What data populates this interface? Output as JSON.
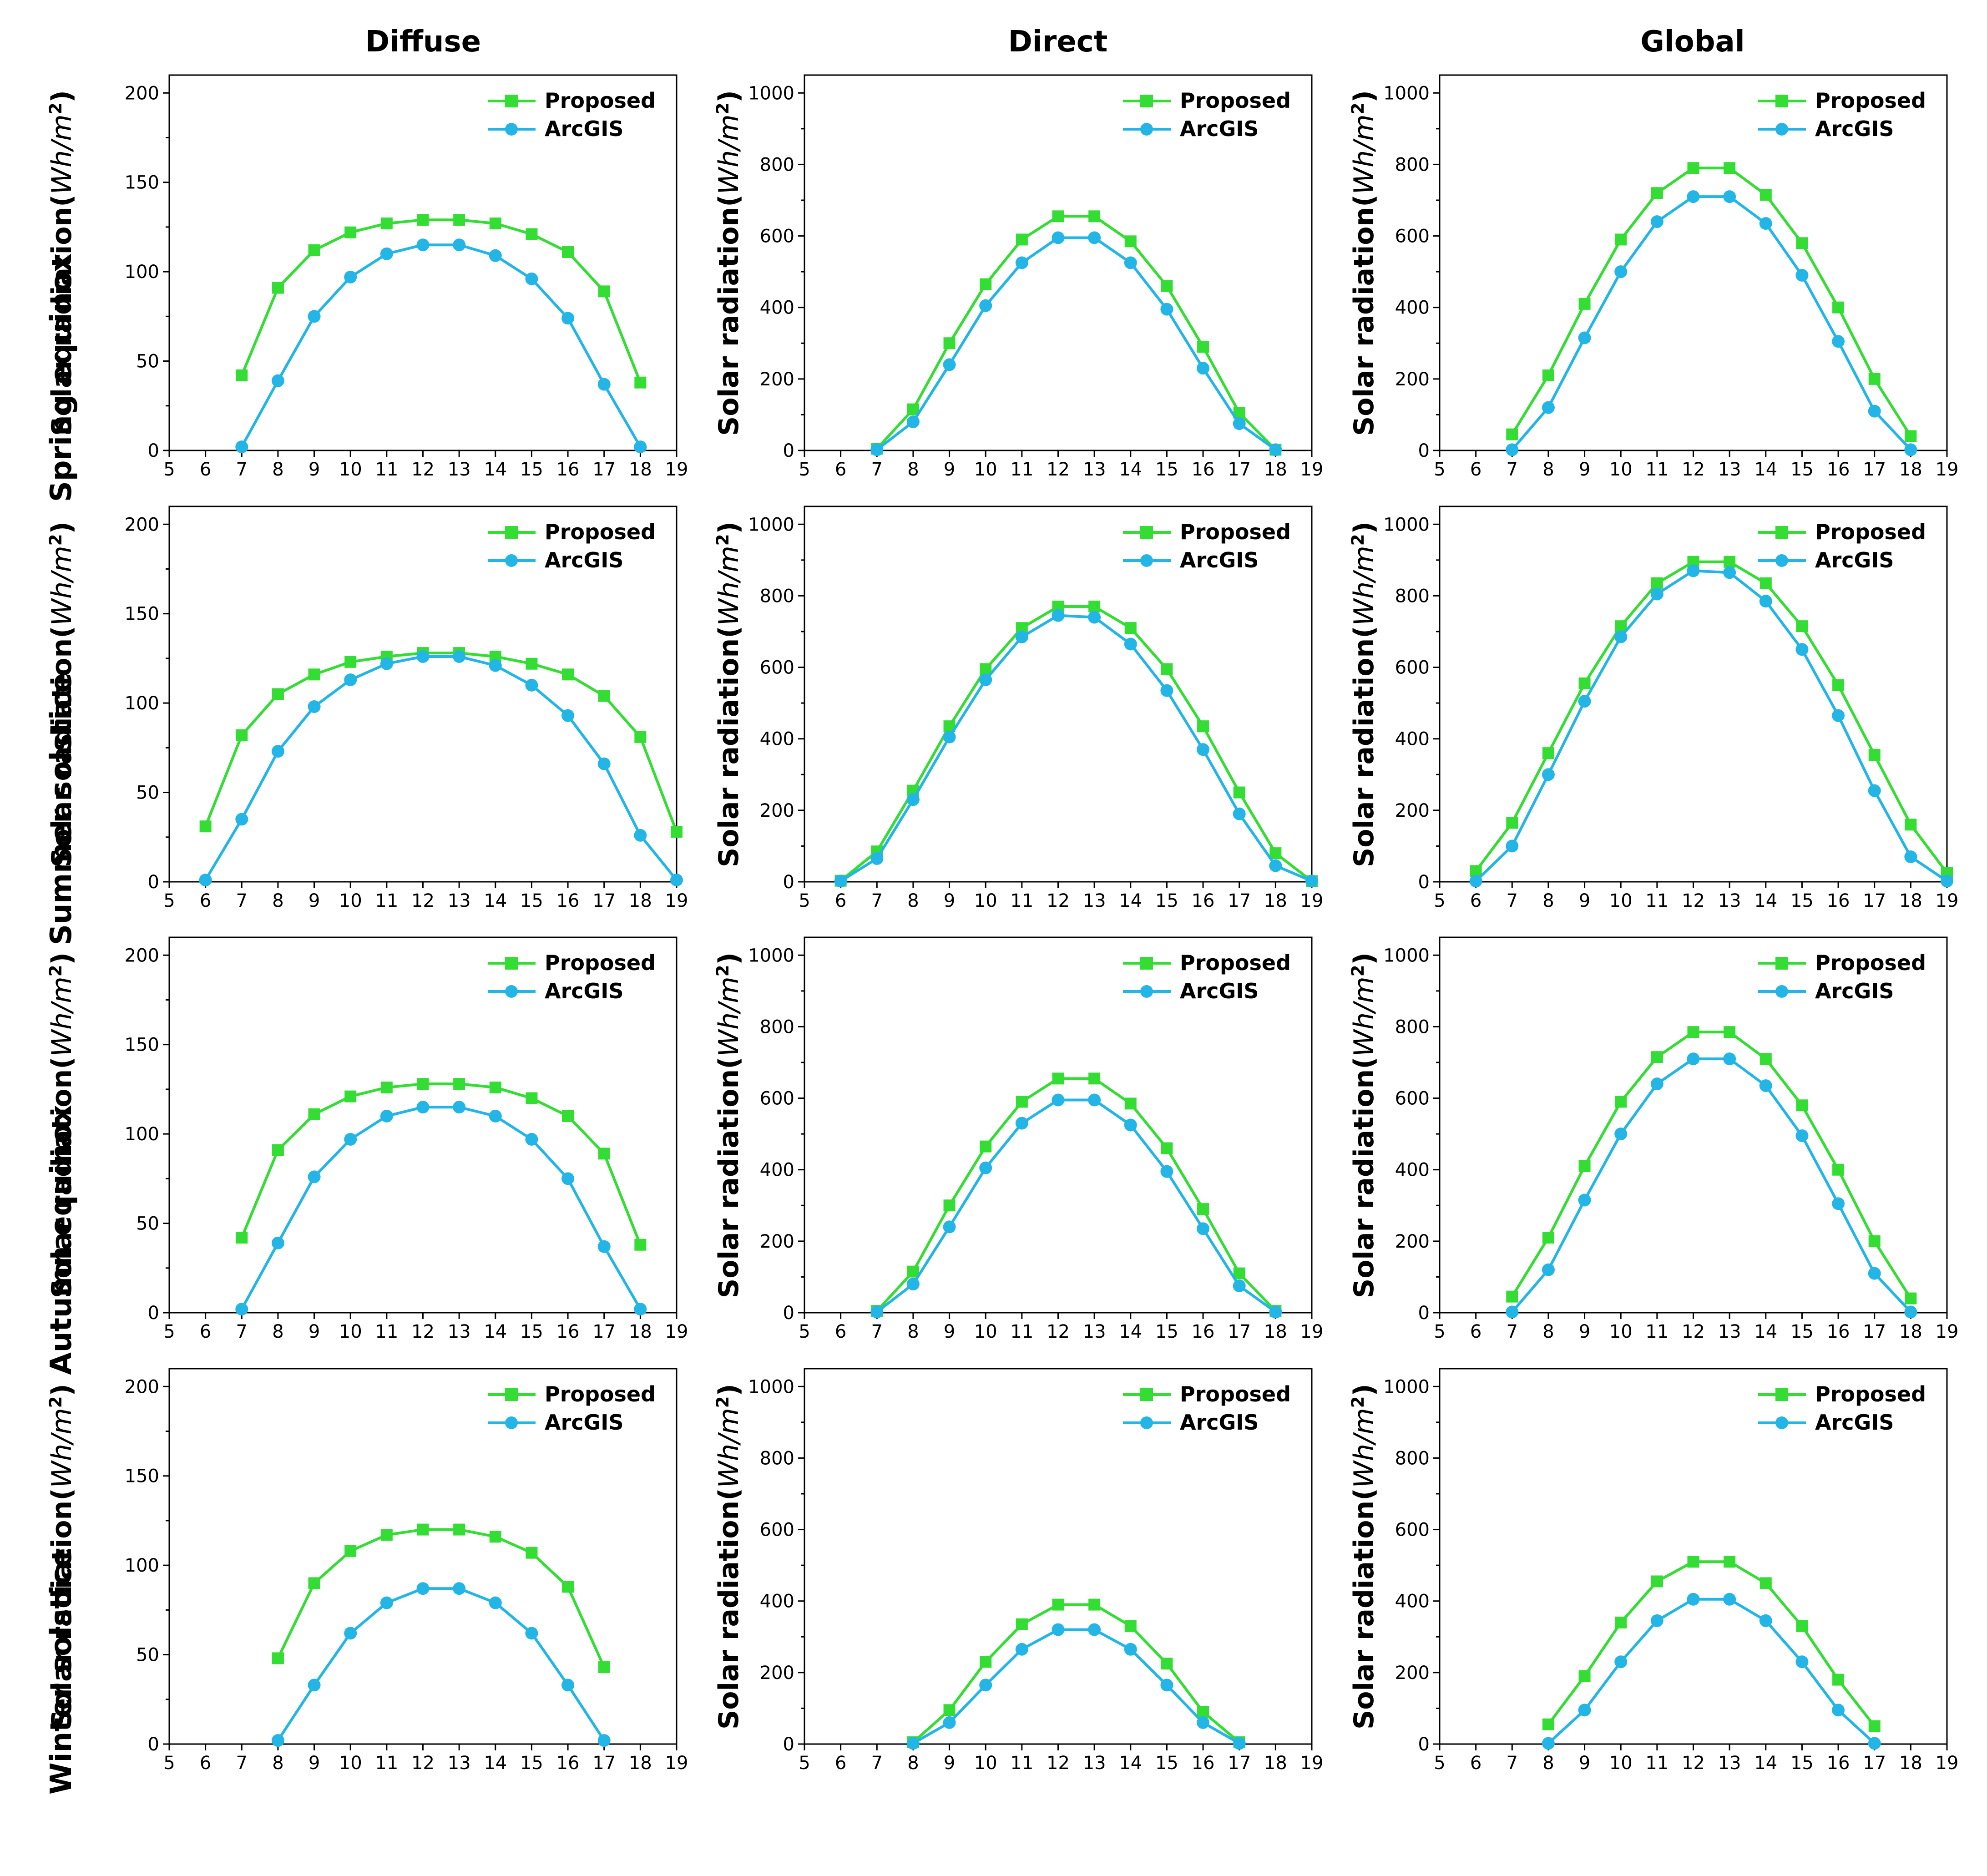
{
  "column_titles": [
    "Diffuse",
    "Direct",
    "Global"
  ],
  "row_titles": [
    "Spring equinox",
    "Summer solstice",
    "Autumn equinox",
    "Winter solstice"
  ],
  "y_axis_label": {
    "prefix": "Solar radiation(",
    "unit": "Wh/m",
    "exp": "2",
    "suffix": ")"
  },
  "legend": [
    {
      "name": "Proposed",
      "color": "#33dd33",
      "marker": "square"
    },
    {
      "name": "ArcGIS",
      "color": "#22b5e6",
      "marker": "circle"
    }
  ],
  "chart_data": [
    {
      "type": "line",
      "row": "Spring equinox",
      "column": "Diffuse",
      "xlim": [
        5,
        19
      ],
      "ylim": [
        0,
        200
      ],
      "yticks": [
        0,
        50,
        100,
        150,
        200
      ],
      "xticks": [
        5,
        6,
        7,
        8,
        9,
        10,
        11,
        12,
        13,
        14,
        15,
        16,
        17,
        18,
        19
      ],
      "series": [
        {
          "name": "Proposed",
          "x": [
            7,
            8,
            9,
            10,
            11,
            12,
            13,
            14,
            15,
            16,
            17,
            18
          ],
          "y": [
            42,
            91,
            112,
            122,
            127,
            129,
            129,
            127,
            121,
            111,
            89,
            38
          ]
        },
        {
          "name": "ArcGIS",
          "x": [
            7,
            8,
            9,
            10,
            11,
            12,
            13,
            14,
            15,
            16,
            17,
            18
          ],
          "y": [
            2,
            39,
            75,
            97,
            110,
            115,
            115,
            109,
            96,
            74,
            37,
            2
          ]
        }
      ]
    },
    {
      "type": "line",
      "row": "Spring equinox",
      "column": "Direct",
      "xlim": [
        5,
        19
      ],
      "ylim": [
        0,
        1000
      ],
      "yticks": [
        0,
        200,
        400,
        600,
        800,
        1000
      ],
      "xticks": [
        5,
        6,
        7,
        8,
        9,
        10,
        11,
        12,
        13,
        14,
        15,
        16,
        17,
        18,
        19
      ],
      "series": [
        {
          "name": "Proposed",
          "x": [
            7,
            8,
            9,
            10,
            11,
            12,
            13,
            14,
            15,
            16,
            17,
            18
          ],
          "y": [
            5,
            115,
            300,
            465,
            590,
            655,
            655,
            585,
            460,
            290,
            105,
            2
          ]
        },
        {
          "name": "ArcGIS",
          "x": [
            7,
            8,
            9,
            10,
            11,
            12,
            13,
            14,
            15,
            16,
            17,
            18
          ],
          "y": [
            2,
            80,
            240,
            405,
            525,
            595,
            595,
            525,
            395,
            230,
            75,
            2
          ]
        }
      ]
    },
    {
      "type": "line",
      "row": "Spring equinox",
      "column": "Global",
      "xlim": [
        5,
        19
      ],
      "ylim": [
        0,
        1000
      ],
      "yticks": [
        0,
        200,
        400,
        600,
        800,
        1000
      ],
      "xticks": [
        5,
        6,
        7,
        8,
        9,
        10,
        11,
        12,
        13,
        14,
        15,
        16,
        17,
        18,
        19
      ],
      "series": [
        {
          "name": "Proposed",
          "x": [
            7,
            8,
            9,
            10,
            11,
            12,
            13,
            14,
            15,
            16,
            17,
            18
          ],
          "y": [
            45,
            210,
            410,
            590,
            720,
            790,
            790,
            715,
            580,
            400,
            200,
            40
          ]
        },
        {
          "name": "ArcGIS",
          "x": [
            7,
            8,
            9,
            10,
            11,
            12,
            13,
            14,
            15,
            16,
            17,
            18
          ],
          "y": [
            2,
            120,
            315,
            500,
            640,
            710,
            710,
            635,
            490,
            305,
            110,
            2
          ]
        }
      ]
    },
    {
      "type": "line",
      "row": "Summer solstice",
      "column": "Diffuse",
      "xlim": [
        5,
        19
      ],
      "ylim": [
        0,
        200
      ],
      "yticks": [
        0,
        50,
        100,
        150,
        200
      ],
      "xticks": [
        5,
        6,
        7,
        8,
        9,
        10,
        11,
        12,
        13,
        14,
        15,
        16,
        17,
        18,
        19
      ],
      "series": [
        {
          "name": "Proposed",
          "x": [
            6,
            7,
            8,
            9,
            10,
            11,
            12,
            13,
            14,
            15,
            16,
            17,
            18,
            19
          ],
          "y": [
            31,
            82,
            105,
            116,
            123,
            126,
            128,
            128,
            126,
            122,
            116,
            104,
            81,
            28
          ]
        },
        {
          "name": "ArcGIS",
          "x": [
            6,
            7,
            8,
            9,
            10,
            11,
            12,
            13,
            14,
            15,
            16,
            17,
            18,
            19
          ],
          "y": [
            1,
            35,
            73,
            98,
            113,
            122,
            126,
            126,
            121,
            110,
            93,
            66,
            26,
            1
          ]
        }
      ]
    },
    {
      "type": "line",
      "row": "Summer solstice",
      "column": "Direct",
      "xlim": [
        5,
        19
      ],
      "ylim": [
        0,
        1000
      ],
      "yticks": [
        0,
        200,
        400,
        600,
        800,
        1000
      ],
      "xticks": [
        5,
        6,
        7,
        8,
        9,
        10,
        11,
        12,
        13,
        14,
        15,
        16,
        17,
        18,
        19
      ],
      "series": [
        {
          "name": "Proposed",
          "x": [
            6,
            7,
            8,
            9,
            10,
            11,
            12,
            13,
            14,
            15,
            16,
            17,
            18,
            19
          ],
          "y": [
            3,
            85,
            255,
            435,
            595,
            710,
            770,
            770,
            710,
            595,
            435,
            250,
            80,
            2
          ]
        },
        {
          "name": "ArcGIS",
          "x": [
            6,
            7,
            8,
            9,
            10,
            11,
            12,
            13,
            14,
            15,
            16,
            17,
            18,
            19
          ],
          "y": [
            2,
            65,
            230,
            405,
            565,
            685,
            745,
            740,
            665,
            535,
            370,
            190,
            45,
            2
          ]
        }
      ]
    },
    {
      "type": "line",
      "row": "Summer solstice",
      "column": "Global",
      "xlim": [
        5,
        19
      ],
      "ylim": [
        0,
        1000
      ],
      "yticks": [
        0,
        200,
        400,
        600,
        800,
        1000
      ],
      "xticks": [
        5,
        6,
        7,
        8,
        9,
        10,
        11,
        12,
        13,
        14,
        15,
        16,
        17,
        18,
        19
      ],
      "series": [
        {
          "name": "Proposed",
          "x": [
            6,
            7,
            8,
            9,
            10,
            11,
            12,
            13,
            14,
            15,
            16,
            17,
            18,
            19
          ],
          "y": [
            30,
            165,
            360,
            555,
            715,
            835,
            895,
            895,
            835,
            715,
            550,
            355,
            160,
            25
          ]
        },
        {
          "name": "ArcGIS",
          "x": [
            6,
            7,
            8,
            9,
            10,
            11,
            12,
            13,
            14,
            15,
            16,
            17,
            18,
            19
          ],
          "y": [
            2,
            100,
            300,
            505,
            685,
            805,
            870,
            865,
            785,
            650,
            465,
            255,
            70,
            2
          ]
        }
      ]
    },
    {
      "type": "line",
      "row": "Autumn equinox",
      "column": "Diffuse",
      "xlim": [
        5,
        19
      ],
      "ylim": [
        0,
        200
      ],
      "yticks": [
        0,
        50,
        100,
        150,
        200
      ],
      "xticks": [
        5,
        6,
        7,
        8,
        9,
        10,
        11,
        12,
        13,
        14,
        15,
        16,
        17,
        18,
        19
      ],
      "series": [
        {
          "name": "Proposed",
          "x": [
            7,
            8,
            9,
            10,
            11,
            12,
            13,
            14,
            15,
            16,
            17,
            18
          ],
          "y": [
            42,
            91,
            111,
            121,
            126,
            128,
            128,
            126,
            120,
            110,
            89,
            38
          ]
        },
        {
          "name": "ArcGIS",
          "x": [
            7,
            8,
            9,
            10,
            11,
            12,
            13,
            14,
            15,
            16,
            17,
            18
          ],
          "y": [
            2,
            39,
            76,
            97,
            110,
            115,
            115,
            110,
            97,
            75,
            37,
            2
          ]
        }
      ]
    },
    {
      "type": "line",
      "row": "Autumn equinox",
      "column": "Direct",
      "xlim": [
        5,
        19
      ],
      "ylim": [
        0,
        1000
      ],
      "yticks": [
        0,
        200,
        400,
        600,
        800,
        1000
      ],
      "xticks": [
        5,
        6,
        7,
        8,
        9,
        10,
        11,
        12,
        13,
        14,
        15,
        16,
        17,
        18,
        19
      ],
      "series": [
        {
          "name": "Proposed",
          "x": [
            7,
            8,
            9,
            10,
            11,
            12,
            13,
            14,
            15,
            16,
            17,
            18
          ],
          "y": [
            5,
            115,
            300,
            465,
            590,
            655,
            655,
            585,
            460,
            290,
            110,
            5
          ]
        },
        {
          "name": "ArcGIS",
          "x": [
            7,
            8,
            9,
            10,
            11,
            12,
            13,
            14,
            15,
            16,
            17,
            18
          ],
          "y": [
            2,
            80,
            240,
            405,
            530,
            595,
            595,
            525,
            395,
            235,
            75,
            2
          ]
        }
      ]
    },
    {
      "type": "line",
      "row": "Autumn equinox",
      "column": "Global",
      "xlim": [
        5,
        19
      ],
      "ylim": [
        0,
        1000
      ],
      "yticks": [
        0,
        200,
        400,
        600,
        800,
        1000
      ],
      "xticks": [
        5,
        6,
        7,
        8,
        9,
        10,
        11,
        12,
        13,
        14,
        15,
        16,
        17,
        18,
        19
      ],
      "series": [
        {
          "name": "Proposed",
          "x": [
            7,
            8,
            9,
            10,
            11,
            12,
            13,
            14,
            15,
            16,
            17,
            18
          ],
          "y": [
            45,
            210,
            410,
            590,
            715,
            785,
            785,
            710,
            580,
            400,
            200,
            40
          ]
        },
        {
          "name": "ArcGIS",
          "x": [
            7,
            8,
            9,
            10,
            11,
            12,
            13,
            14,
            15,
            16,
            17,
            18
          ],
          "y": [
            2,
            120,
            315,
            500,
            640,
            710,
            710,
            635,
            495,
            305,
            110,
            2
          ]
        }
      ]
    },
    {
      "type": "line",
      "row": "Winter solstice",
      "column": "Diffuse",
      "xlim": [
        5,
        19
      ],
      "ylim": [
        0,
        200
      ],
      "yticks": [
        0,
        50,
        100,
        150,
        200
      ],
      "xticks": [
        5,
        6,
        7,
        8,
        9,
        10,
        11,
        12,
        13,
        14,
        15,
        16,
        17,
        18,
        19
      ],
      "series": [
        {
          "name": "Proposed",
          "x": [
            8,
            9,
            10,
            11,
            12,
            13,
            14,
            15,
            16,
            17
          ],
          "y": [
            48,
            90,
            108,
            117,
            120,
            120,
            116,
            107,
            88,
            43
          ]
        },
        {
          "name": "ArcGIS",
          "x": [
            8,
            9,
            10,
            11,
            12,
            13,
            14,
            15,
            16,
            17
          ],
          "y": [
            2,
            33,
            62,
            79,
            87,
            87,
            79,
            62,
            33,
            2
          ]
        }
      ]
    },
    {
      "type": "line",
      "row": "Winter solstice",
      "column": "Direct",
      "xlim": [
        5,
        19
      ],
      "ylim": [
        0,
        1000
      ],
      "yticks": [
        0,
        200,
        400,
        600,
        800,
        1000
      ],
      "xticks": [
        5,
        6,
        7,
        8,
        9,
        10,
        11,
        12,
        13,
        14,
        15,
        16,
        17,
        18,
        19
      ],
      "series": [
        {
          "name": "Proposed",
          "x": [
            8,
            9,
            10,
            11,
            12,
            13,
            14,
            15,
            16,
            17
          ],
          "y": [
            5,
            95,
            230,
            335,
            390,
            390,
            330,
            225,
            90,
            5
          ]
        },
        {
          "name": "ArcGIS",
          "x": [
            8,
            9,
            10,
            11,
            12,
            13,
            14,
            15,
            16,
            17
          ],
          "y": [
            2,
            60,
            165,
            265,
            320,
            320,
            265,
            165,
            60,
            2
          ]
        }
      ]
    },
    {
      "type": "line",
      "row": "Winter solstice",
      "column": "Global",
      "xlim": [
        5,
        19
      ],
      "ylim": [
        0,
        1000
      ],
      "yticks": [
        0,
        200,
        400,
        600,
        800,
        1000
      ],
      "xticks": [
        5,
        6,
        7,
        8,
        9,
        10,
        11,
        12,
        13,
        14,
        15,
        16,
        17,
        18,
        19
      ],
      "series": [
        {
          "name": "Proposed",
          "x": [
            8,
            9,
            10,
            11,
            12,
            13,
            14,
            15,
            16,
            17
          ],
          "y": [
            55,
            190,
            340,
            455,
            510,
            510,
            450,
            330,
            180,
            50
          ]
        },
        {
          "name": "ArcGIS",
          "x": [
            8,
            9,
            10,
            11,
            12,
            13,
            14,
            15,
            16,
            17
          ],
          "y": [
            2,
            95,
            230,
            345,
            405,
            405,
            345,
            230,
            95,
            2
          ]
        }
      ]
    }
  ]
}
